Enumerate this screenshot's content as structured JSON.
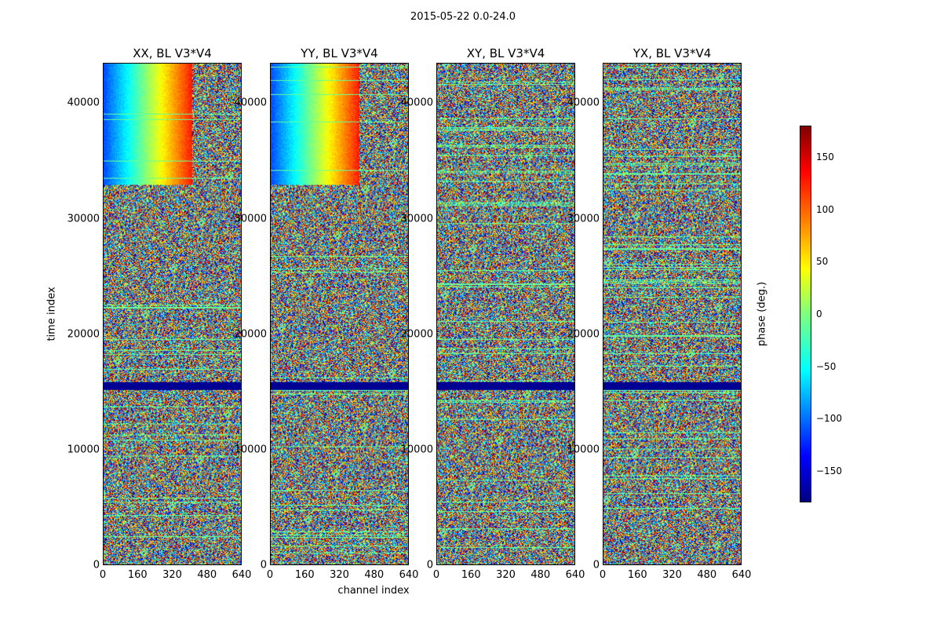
{
  "chart_data": {
    "type": "heatmap",
    "suptitle": "2015-05-22 0.0-24.0",
    "panels": [
      {
        "title": "XX, BL V3*V4"
      },
      {
        "title": "YY, BL V3*V4"
      },
      {
        "title": "XY, BL V3*V4"
      },
      {
        "title": "YX, BL V3*V4"
      }
    ],
    "xlabel": "channel index",
    "ylabel": "time index",
    "xlim": [
      0,
      640
    ],
    "ylim": [
      0,
      43500
    ],
    "xticks": [
      0,
      160,
      320,
      480,
      640
    ],
    "xtick_labels": [
      "0",
      "160",
      "320",
      "480",
      "640"
    ],
    "yticks": [
      0,
      10000,
      20000,
      30000,
      40000
    ],
    "ytick_labels": [
      "0",
      "10000",
      "20000",
      "30000",
      "40000"
    ],
    "colorbar": {
      "label": "phase (deg.)",
      "range": [
        -180,
        180
      ],
      "ticks": [
        -150,
        -100,
        -50,
        0,
        50,
        100,
        150
      ],
      "tick_labels": [
        "−150",
        "−100",
        "−50",
        "0",
        "50",
        "100",
        "150"
      ]
    },
    "colormap": "jet",
    "description_features": {
      "coherent_phase_gradient_time_range": [
        33000,
        43500
      ],
      "flagged_band_time_range": [
        15200,
        15900
      ]
    }
  }
}
